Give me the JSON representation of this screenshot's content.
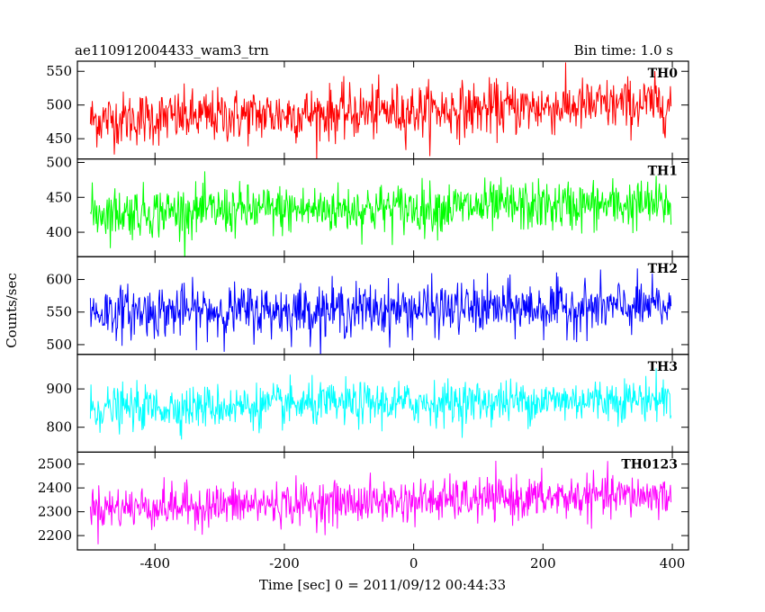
{
  "header": {
    "title": "ae110912004433_wam3_trn",
    "bin_time": "Bin time: 1.0 s"
  },
  "axes": {
    "ylabel": "Counts/sec",
    "xlabel": "Time [sec] 0 = 2011/09/12 00:44:33",
    "xticks": [
      "-400",
      "-200",
      "0",
      "200",
      "400"
    ]
  },
  "chart_data": {
    "type": "line",
    "x_range": [
      -510,
      400
    ],
    "xlim": [
      -520,
      425
    ],
    "x_start": -500,
    "x_end": 398,
    "x_step": 1,
    "panels": [
      {
        "name": "TH0",
        "color": "#ff0000",
        "ylim": [
          420,
          565
        ],
        "yticks": [
          450,
          500,
          550
        ],
        "mean": 478,
        "end_mean": 502,
        "spread": 20
      },
      {
        "name": "TH1",
        "color": "#00ff00",
        "ylim": [
          365,
          505
        ],
        "yticks": [
          400,
          450,
          500
        ],
        "mean": 428,
        "end_mean": 440,
        "spread": 18
      },
      {
        "name": "TH2",
        "color": "#0000ff",
        "ylim": [
          485,
          635
        ],
        "yticks": [
          500,
          550,
          600
        ],
        "mean": 550,
        "end_mean": 558,
        "spread": 20
      },
      {
        "name": "TH3",
        "color": "#00ffff",
        "ylim": [
          735,
          990
        ],
        "yticks": [
          800,
          900
        ],
        "mean": 848,
        "end_mean": 875,
        "spread": 28
      },
      {
        "name": "TH0123",
        "color": "#ff00ff",
        "ylim": [
          2140,
          2550
        ],
        "yticks": [
          2200,
          2300,
          2400,
          2500
        ],
        "mean": 2315,
        "end_mean": 2370,
        "spread": 45
      }
    ]
  }
}
